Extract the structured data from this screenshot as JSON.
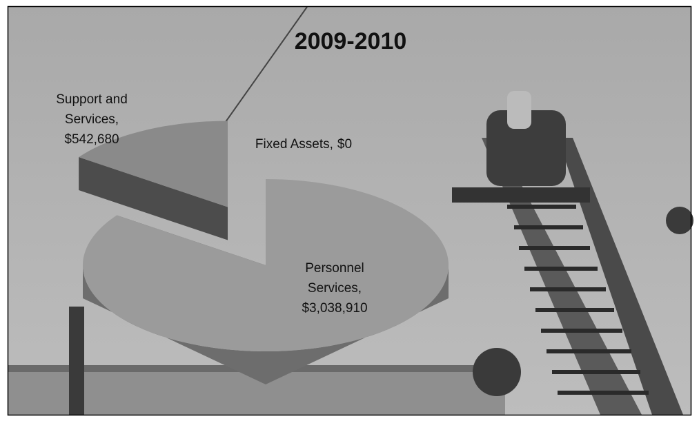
{
  "chart_data": {
    "type": "pie3d",
    "title": "2009-2010",
    "categories": [
      "Personnel Services,",
      "Support and Services,",
      "Fixed Assets,"
    ],
    "values": [
      3038910,
      542680,
      0
    ],
    "value_labels": [
      "$3,038,910",
      "$542,680",
      "$0"
    ],
    "colors": [
      "#9b9b9b",
      "#8a8a8a",
      "#7a7a7a"
    ],
    "explode": [
      0,
      1,
      0
    ]
  }
}
